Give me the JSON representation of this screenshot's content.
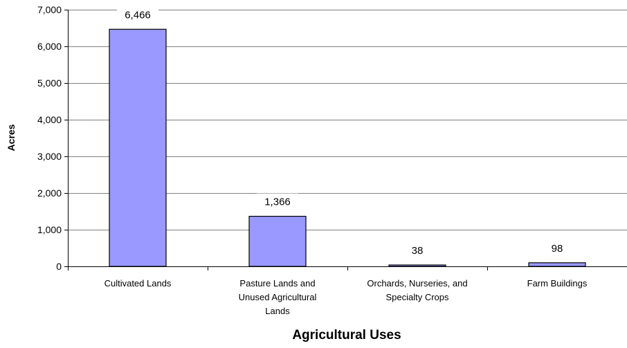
{
  "chart_data": {
    "type": "bar",
    "categories": [
      [
        "Cultivated Lands"
      ],
      [
        "Pasture Lands and",
        "Unused Agricultural",
        "Lands"
      ],
      [
        "Orchards, Nurseries, and",
        "Specialty Crops"
      ],
      [
        "Farm Buildings"
      ]
    ],
    "values": [
      6466,
      1366,
      38,
      98
    ],
    "data_labels": [
      "6,466",
      "1,366",
      "38",
      "98"
    ],
    "title": "",
    "xlabel": "Agricultural Uses",
    "ylabel": "Acres",
    "ylim": [
      0,
      7000
    ],
    "yticks": [
      0,
      1000,
      2000,
      3000,
      4000,
      5000,
      6000,
      7000
    ],
    "ytick_labels": [
      "0",
      "1,000",
      "2,000",
      "3,000",
      "4,000",
      "5,000",
      "6,000",
      "7,000"
    ],
    "grid": true,
    "legend": "none",
    "colors": {
      "bar_fill": "#9999ff",
      "bar_stroke": "#000000",
      "gridline": "#808080",
      "axis": "#000000"
    }
  }
}
